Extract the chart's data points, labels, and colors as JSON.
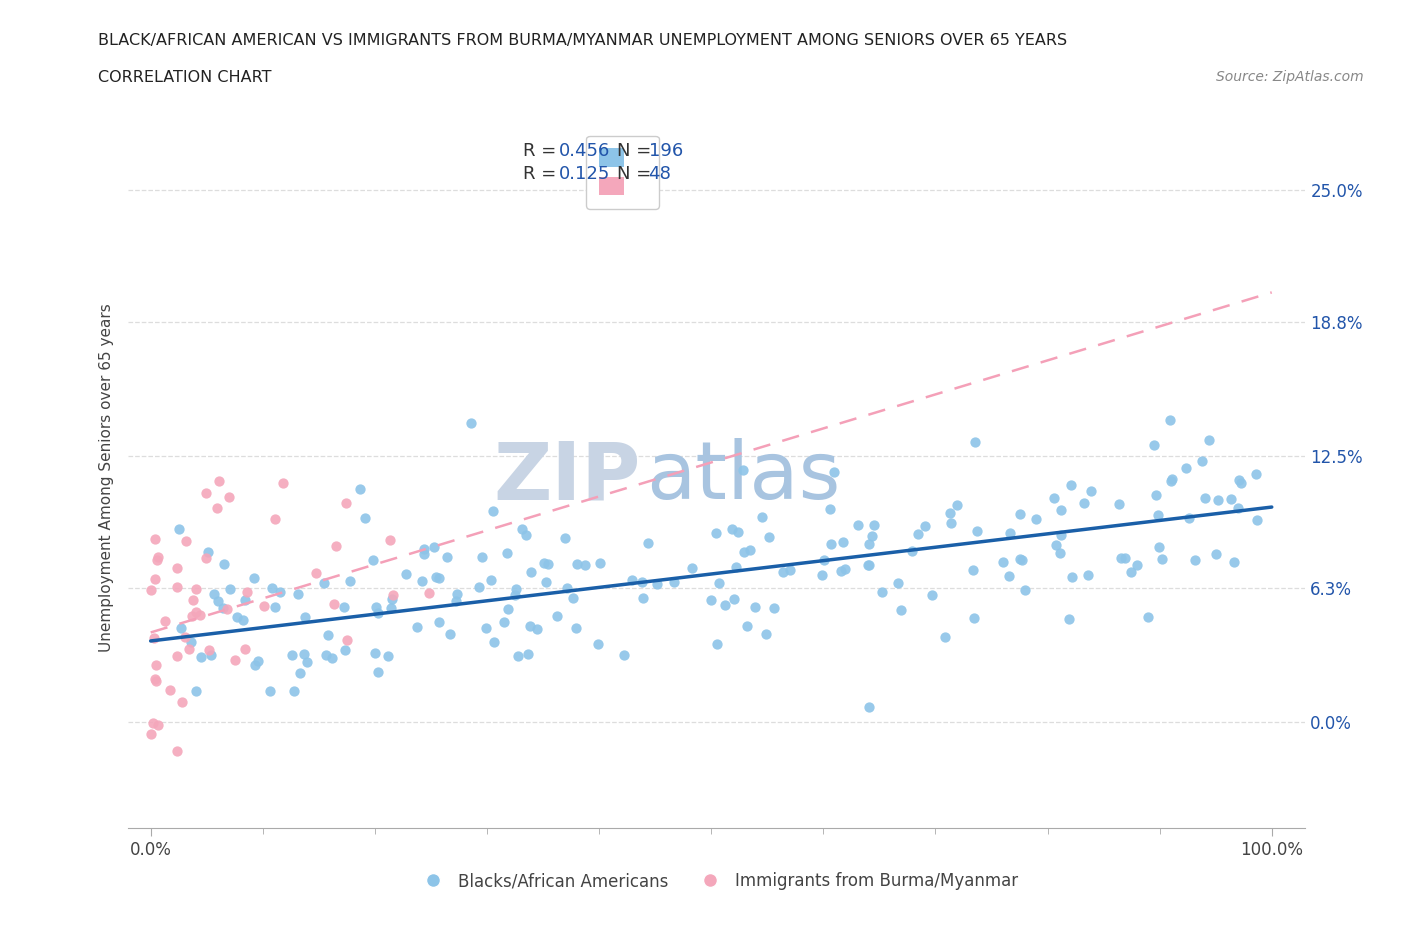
{
  "title_line1": "BLACK/AFRICAN AMERICAN VS IMMIGRANTS FROM BURMA/MYANMAR UNEMPLOYMENT AMONG SENIORS OVER 65 YEARS",
  "title_line2": "CORRELATION CHART",
  "source_text": "Source: ZipAtlas.com",
  "ylabel": "Unemployment Among Seniors over 65 years",
  "yticks": [
    0.0,
    6.3,
    12.5,
    18.8,
    25.0
  ],
  "ytick_labels": [
    "0.0%",
    "6.3%",
    "12.5%",
    "18.8%",
    "25.0%"
  ],
  "xtick_labels": [
    "0.0%",
    "100.0%"
  ],
  "blue_R": 0.456,
  "blue_N": 196,
  "pink_R": 0.125,
  "pink_N": 48,
  "blue_color": "#8dc4e8",
  "pink_color": "#f4a7bb",
  "blue_line_color": "#1a5fa8",
  "pink_line_color": "#f4a0b8",
  "watermark_zip_color": "#c8d4e8",
  "watermark_atlas_color": "#a8c4e0",
  "legend_label_blue": "Blacks/African Americans",
  "legend_label_pink": "Immigrants from Burma/Myanmar",
  "blue_slope": 0.063,
  "blue_intercept": 3.8,
  "pink_slope": 0.16,
  "pink_intercept": 4.2,
  "r_n_color": "#1a6faf",
  "background_color": "#ffffff",
  "seed": 42
}
